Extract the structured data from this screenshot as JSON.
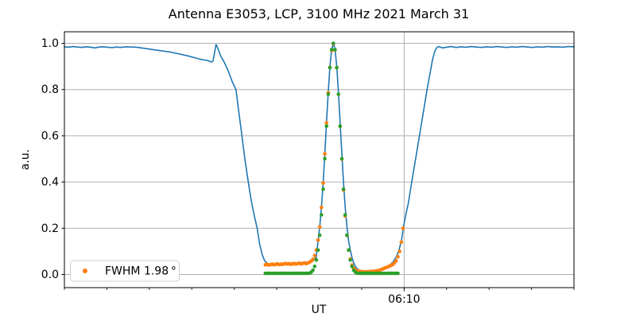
{
  "figure": {
    "title": "Antenna E3053, LCP, 3100 MHz 2021 March 31",
    "xlabel": "UT",
    "ylabel": "a.u.",
    "legend": {
      "label": "FWHM 1.98 °",
      "marker_color": "#ff7f0e"
    }
  },
  "chart_data": {
    "type": "line+scatter",
    "title": "Antenna E3053, LCP, 3100 MHz 2021 March 31",
    "xlabel": "UT",
    "ylabel": "a.u.",
    "x_axis": {
      "unit": "minutes after 06:00 UT",
      "range": [
        2,
        14
      ],
      "minor_tick_minutes": [
        2,
        3,
        4,
        5,
        6,
        7,
        8,
        9,
        11,
        12,
        13,
        14
      ],
      "major_ticks": [
        {
          "minute": 10,
          "label": "06:10"
        }
      ]
    },
    "y_axis": {
      "range": [
        -0.05,
        1.05
      ],
      "tick_values": [
        0.0,
        0.2,
        0.4,
        0.6,
        0.8,
        1.0
      ],
      "tick_labels": [
        "0.0",
        "0.2",
        "0.4",
        "0.6",
        "0.8",
        "1.0"
      ]
    },
    "grid": {
      "color": "#b0b0b0",
      "horizontal_at": [
        0.0,
        0.2,
        0.4,
        0.6,
        0.8,
        1.0
      ],
      "vertical_at_minutes": [
        10
      ]
    },
    "legend": {
      "location": "lower left",
      "entries": [
        {
          "label": "FWHM 1.98 °",
          "series": "scan-data",
          "color": "#ff7f0e"
        }
      ]
    },
    "fit_params": {
      "fwhm_deg": 1.98,
      "peak_minute": 8.333,
      "sigma_minute": 0.17,
      "peak_value": 1.0
    },
    "series": [
      {
        "name": "signal",
        "type": "line",
        "color": "#1f77b4",
        "linewidth": 1.6,
        "points": [
          [
            2.0,
            0.985
          ],
          [
            2.1,
            0.983
          ],
          [
            2.2,
            0.986
          ],
          [
            2.3,
            0.984
          ],
          [
            2.4,
            0.982
          ],
          [
            2.5,
            0.985
          ],
          [
            2.62,
            0.983
          ],
          [
            2.72,
            0.98
          ],
          [
            2.82,
            0.984
          ],
          [
            2.92,
            0.985
          ],
          [
            3.02,
            0.983
          ],
          [
            3.12,
            0.981
          ],
          [
            3.22,
            0.984
          ],
          [
            3.32,
            0.982
          ],
          [
            3.45,
            0.985
          ],
          [
            3.58,
            0.984
          ],
          [
            3.7,
            0.983
          ],
          [
            3.9,
            0.978
          ],
          [
            4.1,
            0.972
          ],
          [
            4.3,
            0.967
          ],
          [
            4.5,
            0.962
          ],
          [
            4.7,
            0.954
          ],
          [
            4.9,
            0.946
          ],
          [
            5.0,
            0.941
          ],
          [
            5.1,
            0.936
          ],
          [
            5.2,
            0.931
          ],
          [
            5.3,
            0.928
          ],
          [
            5.38,
            0.925
          ],
          [
            5.44,
            0.921
          ],
          [
            5.47,
            0.919
          ],
          [
            5.5,
            0.924
          ],
          [
            5.53,
            0.953
          ],
          [
            5.57,
            0.995
          ],
          [
            5.61,
            0.98
          ],
          [
            5.68,
            0.945
          ],
          [
            5.76,
            0.92
          ],
          [
            5.86,
            0.88
          ],
          [
            5.95,
            0.835
          ],
          [
            6.04,
            0.8
          ],
          [
            6.11,
            0.7
          ],
          [
            6.18,
            0.6
          ],
          [
            6.25,
            0.5
          ],
          [
            6.33,
            0.4
          ],
          [
            6.4,
            0.32
          ],
          [
            6.47,
            0.255
          ],
          [
            6.54,
            0.2
          ],
          [
            6.6,
            0.13
          ],
          [
            6.66,
            0.085
          ],
          [
            6.72,
            0.058
          ],
          [
            6.8,
            0.046
          ],
          [
            6.9,
            0.044
          ],
          [
            7.1,
            0.045
          ],
          [
            7.3,
            0.047
          ],
          [
            7.5,
            0.049
          ],
          [
            7.7,
            0.053
          ],
          [
            7.85,
            0.058
          ],
          [
            7.93,
            0.075
          ],
          [
            7.973,
            0.146
          ],
          [
            8.013,
            0.207
          ],
          [
            8.053,
            0.291
          ],
          [
            8.093,
            0.397
          ],
          [
            8.133,
            0.523
          ],
          [
            8.173,
            0.658
          ],
          [
            8.213,
            0.789
          ],
          [
            8.253,
            0.9
          ],
          [
            8.293,
            0.974
          ],
          [
            8.333,
            1.0
          ],
          [
            8.373,
            0.974
          ],
          [
            8.413,
            0.9
          ],
          [
            8.453,
            0.789
          ],
          [
            8.493,
            0.658
          ],
          [
            8.533,
            0.523
          ],
          [
            8.573,
            0.397
          ],
          [
            8.613,
            0.291
          ],
          [
            8.653,
            0.207
          ],
          [
            8.693,
            0.146
          ],
          [
            8.733,
            0.105
          ],
          [
            8.773,
            0.073
          ],
          [
            8.813,
            0.05
          ],
          [
            8.853,
            0.035
          ],
          [
            8.893,
            0.025
          ],
          [
            8.953,
            0.017
          ],
          [
            9.05,
            0.013
          ],
          [
            9.15,
            0.012
          ],
          [
            9.25,
            0.013
          ],
          [
            9.35,
            0.015
          ],
          [
            9.45,
            0.02
          ],
          [
            9.55,
            0.028
          ],
          [
            9.64,
            0.038
          ],
          [
            9.73,
            0.052
          ],
          [
            9.81,
            0.075
          ],
          [
            9.88,
            0.105
          ],
          [
            9.94,
            0.15
          ],
          [
            9.99,
            0.21
          ],
          [
            10.03,
            0.25
          ],
          [
            10.1,
            0.31
          ],
          [
            10.18,
            0.4
          ],
          [
            10.27,
            0.5
          ],
          [
            10.36,
            0.6
          ],
          [
            10.46,
            0.71
          ],
          [
            10.54,
            0.8
          ],
          [
            10.61,
            0.87
          ],
          [
            10.67,
            0.93
          ],
          [
            10.72,
            0.965
          ],
          [
            10.77,
            0.982
          ],
          [
            10.82,
            0.986
          ],
          [
            10.9,
            0.98
          ],
          [
            11.0,
            0.983
          ],
          [
            11.1,
            0.986
          ],
          [
            11.22,
            0.982
          ],
          [
            11.34,
            0.985
          ],
          [
            11.46,
            0.983
          ],
          [
            11.58,
            0.986
          ],
          [
            11.7,
            0.984
          ],
          [
            11.82,
            0.982
          ],
          [
            11.94,
            0.985
          ],
          [
            12.06,
            0.983
          ],
          [
            12.18,
            0.986
          ],
          [
            12.3,
            0.984
          ],
          [
            12.42,
            0.982
          ],
          [
            12.54,
            0.985
          ],
          [
            12.66,
            0.983
          ],
          [
            12.78,
            0.986
          ],
          [
            12.9,
            0.984
          ],
          [
            13.02,
            0.982
          ],
          [
            13.14,
            0.985
          ],
          [
            13.26,
            0.983
          ],
          [
            13.38,
            0.986
          ],
          [
            13.5,
            0.984
          ],
          [
            13.62,
            0.985
          ],
          [
            13.74,
            0.983
          ],
          [
            13.86,
            0.986
          ],
          [
            14.0,
            0.985
          ]
        ]
      },
      {
        "name": "scan-data",
        "type": "scatter",
        "color": "#ff7f0e",
        "marker_radius": 2.3,
        "t_start": 6.733,
        "t_step": 0.04,
        "values": [
          0.042,
          0.044,
          0.041,
          0.043,
          0.045,
          0.042,
          0.044,
          0.046,
          0.043,
          0.045,
          0.044,
          0.046,
          0.048,
          0.045,
          0.047,
          0.044,
          0.046,
          0.048,
          0.045,
          0.047,
          0.049,
          0.046,
          0.048,
          0.05,
          0.047,
          0.05,
          0.053,
          0.058,
          0.066,
          0.082,
          0.106,
          0.149,
          0.206,
          0.29,
          0.396,
          0.522,
          0.656,
          0.786,
          0.896,
          0.969,
          0.998,
          0.971,
          0.894,
          0.779,
          0.641,
          0.499,
          0.366,
          0.253,
          0.169,
          0.106,
          0.067,
          0.041,
          0.027,
          0.02,
          0.016,
          0.014,
          0.013,
          0.012,
          0.012,
          0.011,
          0.012,
          0.012,
          0.013,
          0.013,
          0.014,
          0.015,
          0.016,
          0.018,
          0.021,
          0.024,
          0.027,
          0.03,
          0.033,
          0.036,
          0.04,
          0.044,
          0.05,
          0.06,
          0.077,
          0.1,
          0.14,
          0.2
        ]
      },
      {
        "name": "gaussian-fit",
        "type": "scatter",
        "color": "#2ca02c",
        "marker_radius": 2.3,
        "t_start": 6.733,
        "t_step": 0.04,
        "values": [
          0.005,
          0.005,
          0.005,
          0.005,
          0.005,
          0.005,
          0.005,
          0.005,
          0.005,
          0.005,
          0.005,
          0.005,
          0.005,
          0.005,
          0.005,
          0.005,
          0.005,
          0.005,
          0.005,
          0.005,
          0.005,
          0.005,
          0.005,
          0.005,
          0.005,
          0.005,
          0.006,
          0.01,
          0.019,
          0.035,
          0.063,
          0.106,
          0.17,
          0.258,
          0.369,
          0.501,
          0.642,
          0.78,
          0.895,
          0.973,
          1.0,
          0.973,
          0.895,
          0.78,
          0.642,
          0.501,
          0.369,
          0.258,
          0.17,
          0.106,
          0.063,
          0.035,
          0.019,
          0.01,
          0.006,
          0.005,
          0.005,
          0.005,
          0.005,
          0.005,
          0.005,
          0.005,
          0.005,
          0.005,
          0.005,
          0.005,
          0.005,
          0.005,
          0.005,
          0.005,
          0.005,
          0.005,
          0.005,
          0.005,
          0.005,
          0.005,
          0.005,
          0.005,
          0.005
        ]
      }
    ]
  }
}
